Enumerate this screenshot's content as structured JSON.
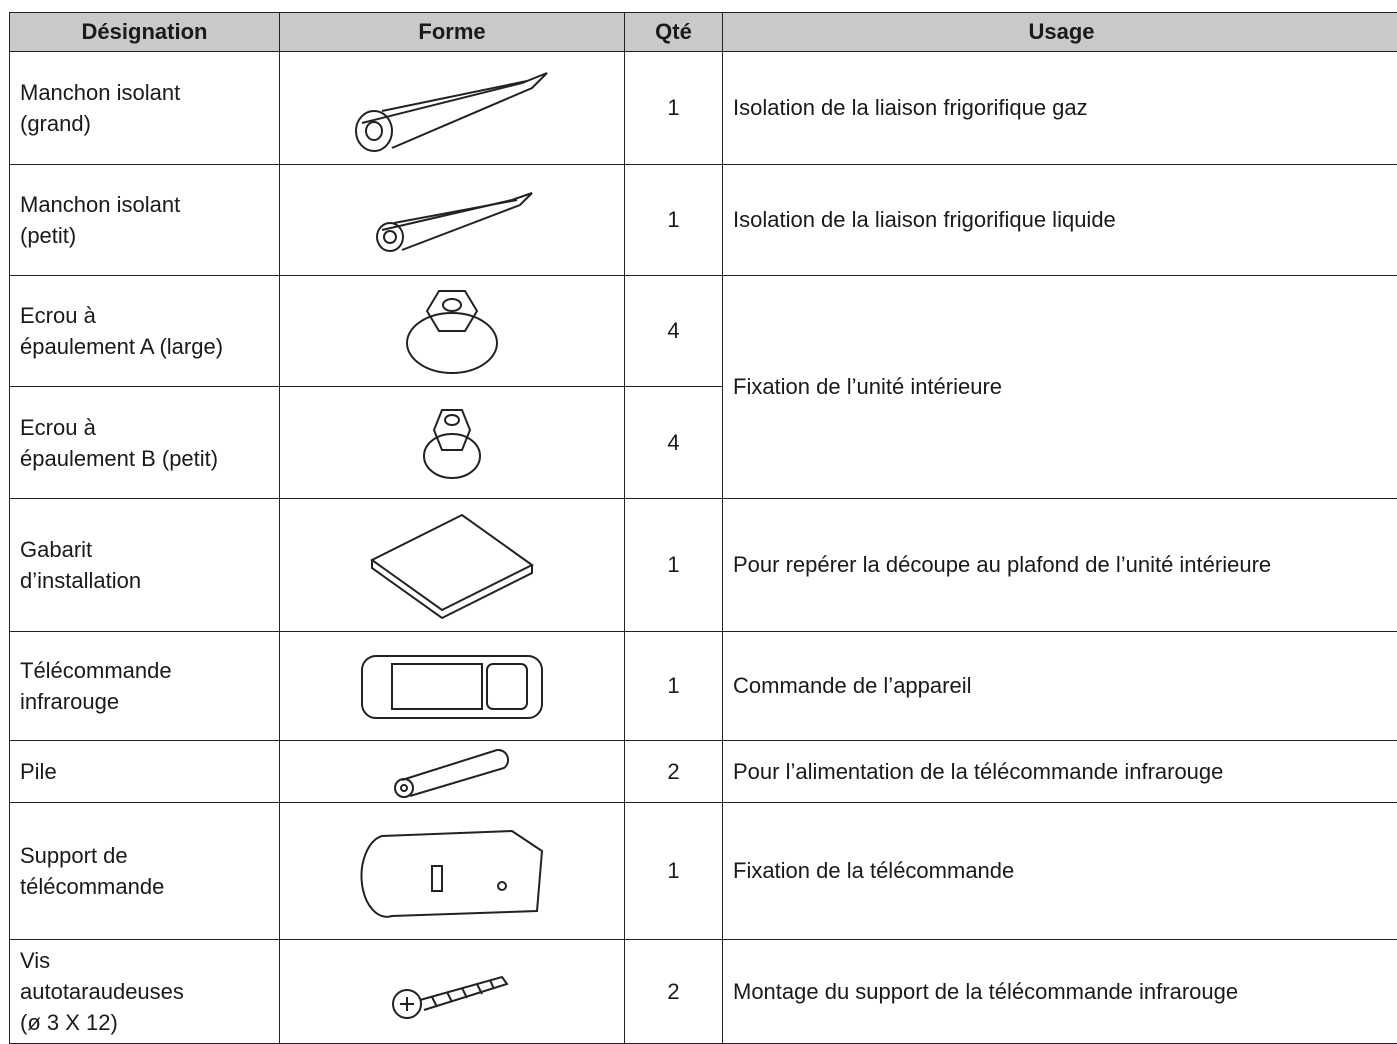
{
  "table": {
    "header": [
      "Désignation",
      "Forme",
      "Qté",
      "Usage"
    ],
    "rows": [
      {
        "designation": [
          "Manchon isolant",
          "(grand)"
        ],
        "qte": 1,
        "usage": "Isolation de la liaison frigorifique gaz"
      },
      {
        "designation": [
          "Manchon isolant",
          "(petit)"
        ],
        "qte": 1,
        "usage": "Isolation de la liaison frigorifique liquide"
      },
      {
        "designation": [
          "Ecrou à",
          "épaulement A (large)"
        ],
        "qte": 4,
        "usage": "Fixation de l’unité intérieure"
      },
      {
        "designation": [
          "Ecrou à",
          "épaulement B (petit)"
        ],
        "qte": 4
      },
      {
        "designation": [
          "Gabarit",
          "d’installation"
        ],
        "qte": 1,
        "usage": "Pour repérer la découpe au plafond de l’unité intérieure"
      },
      {
        "designation": [
          "Télécommande",
          "infrarouge"
        ],
        "qte": 1,
        "usage": "Commande de l’appareil"
      },
      {
        "designation": [
          "Pile"
        ],
        "qte": 2,
        "usage": "Pour l’alimentation de la télécommande infrarouge"
      },
      {
        "designation": [
          "Support de",
          "télécommande"
        ],
        "qte": 1,
        "usage": "Fixation de la télécommande"
      },
      {
        "designation": [
          "Vis",
          "autotaraudeuses",
          "(ø 3 X 12)"
        ],
        "qte": 2,
        "usage": "Montage du support de la télécommande infrarouge"
      }
    ]
  }
}
